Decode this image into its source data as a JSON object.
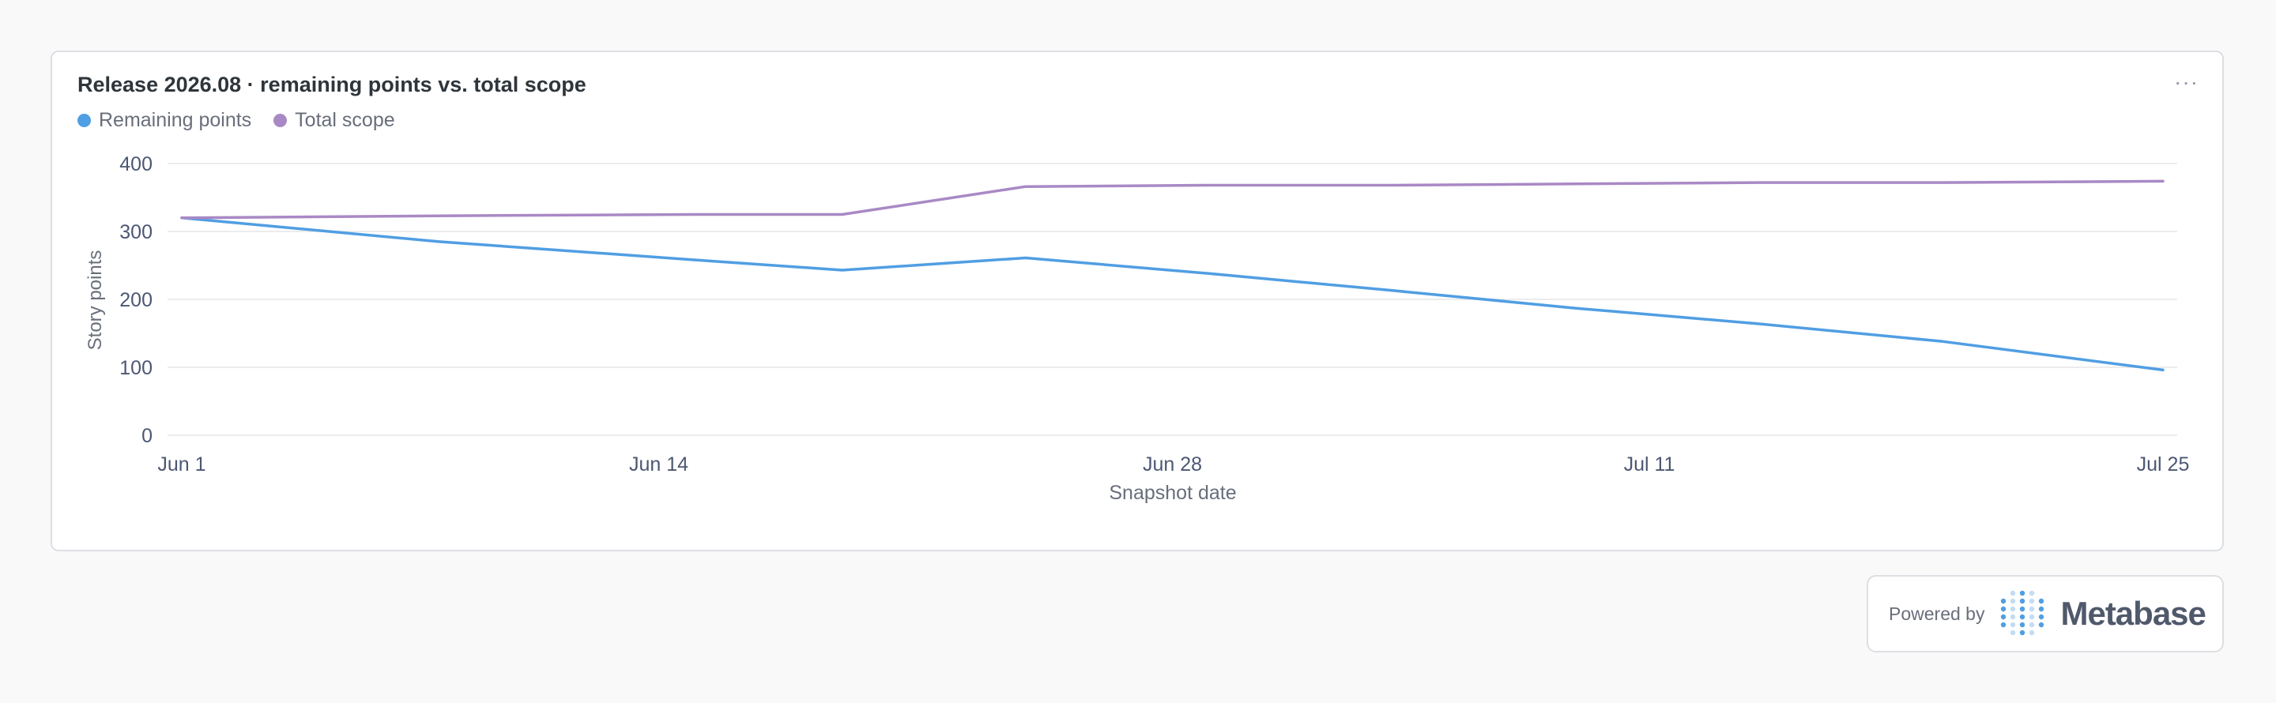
{
  "card": {
    "title": "Release 2026.08 · remaining points vs. total scope",
    "menu_label": "···"
  },
  "colors": {
    "remaining": "#509ee3",
    "scope": "#a989c5",
    "grid": "#ececec",
    "axis_text": "#4c5773"
  },
  "chart_data": {
    "type": "line",
    "title": "Release 2026.08 · remaining points vs. total scope",
    "xlabel": "Snapshot date",
    "ylabel": "Story points",
    "x_ticks": [
      "Jun 1",
      "Jun 14",
      "Jun 28",
      "Jul 11",
      "Jul 25"
    ],
    "x_tick_days": [
      0,
      13,
      27,
      40,
      54
    ],
    "x": [
      "Jun 1",
      "Jun 8",
      "Jun 15",
      "Jun 19",
      "Jun 24",
      "Jun 29",
      "Jul 4",
      "Jul 9",
      "Jul 14",
      "Jul 19",
      "Jul 25"
    ],
    "x_days": [
      0,
      7,
      14,
      18,
      23,
      28,
      33,
      38,
      43,
      48,
      54
    ],
    "ylim": [
      0,
      400
    ],
    "y_ticks": [
      0,
      100,
      200,
      300,
      400
    ],
    "grid": true,
    "legend_position": "top-left",
    "series": [
      {
        "name": "Remaining points",
        "values": [
          320,
          285,
          258,
          243,
          261,
          238,
          213,
          187,
          164,
          138,
          96
        ]
      },
      {
        "name": "Total scope",
        "values": [
          320,
          323,
          325,
          325,
          366,
          368,
          368,
          370,
          372,
          372,
          374
        ]
      }
    ]
  },
  "footer": {
    "powered_by": "Powered by",
    "brand": "Metabase"
  }
}
